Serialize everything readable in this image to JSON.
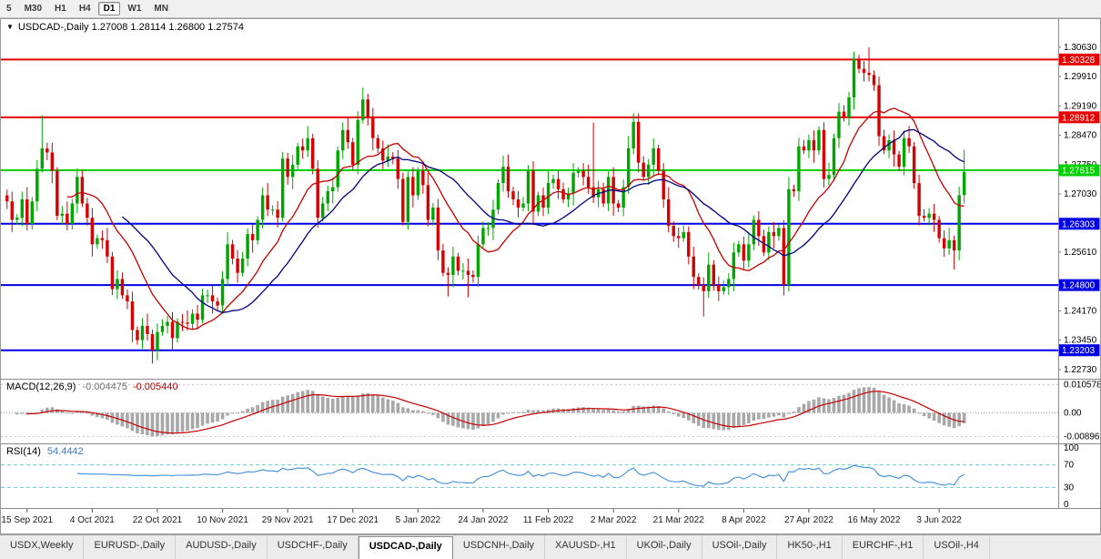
{
  "toolbar": {
    "buttons": [
      "5",
      "M30",
      "H1",
      "H4",
      "D1",
      "W1",
      "MN"
    ],
    "active": "D1"
  },
  "chart": {
    "collapse_icon": "▼",
    "readout": "USDCAD-,Daily 1.27008 1.28114 1.26800 1.27574",
    "symbol": "USDCAD-",
    "period": "Daily",
    "open": "1.27008",
    "high": "1.28114",
    "low": "1.26800",
    "close": "1.27574"
  },
  "main_axis": {
    "labels": [
      "1.30630",
      "1.29910",
      "1.29190",
      "1.28470",
      "1.27750",
      "1.27030",
      "1.25610",
      "1.24170",
      "1.23450",
      "1.22730"
    ],
    "price_max": 1.3105,
    "price_min": 1.2255
  },
  "lines": [
    {
      "price": 1.30328,
      "label": "1.30328",
      "color": "#E60000",
      "text": "#FFFFFF"
    },
    {
      "price": 1.28912,
      "label": "1.28912",
      "color": "#E60000",
      "text": "#FFFFFF"
    },
    {
      "price": 1.27615,
      "label": "1.27615",
      "color": "#00D000",
      "text": "#FFFFFF"
    },
    {
      "price": 1.26303,
      "label": "1.26303",
      "color": "#0000E6",
      "text": "#FFFFFF"
    },
    {
      "price": 1.248,
      "label": "1.24800",
      "color": "#0000E6",
      "text": "#FFFFFF"
    },
    {
      "price": 1.23203,
      "label": "1.23203",
      "color": "#0000E6",
      "text": "#FFFFFF"
    }
  ],
  "chart_data": {
    "type": "candlestick",
    "symbol": "USDCAD",
    "timeframe": "Daily",
    "first_open": 1.27,
    "closes": [
      1.2685,
      1.264,
      1.2645,
      1.269,
      1.263,
      1.2685,
      1.2765,
      1.2815,
      1.2805,
      1.276,
      1.265,
      1.2655,
      1.263,
      1.268,
      1.2745,
      1.268,
      1.2645,
      1.258,
      1.2595,
      1.259,
      1.255,
      1.247,
      1.2495,
      1.2455,
      1.244,
      1.237,
      1.2345,
      1.238,
      1.236,
      1.232,
      1.2365,
      1.238,
      1.239,
      1.235,
      1.239,
      1.2388,
      1.2385,
      1.241,
      1.2395,
      1.2455,
      1.2455,
      1.244,
      1.243,
      1.2495,
      1.258,
      1.2545,
      1.251,
      1.2545,
      1.2605,
      1.259,
      1.264,
      1.27,
      1.2665,
      1.2665,
      1.2645,
      1.279,
      1.2745,
      1.2775,
      1.282,
      1.281,
      1.284,
      1.2765,
      1.2645,
      1.268,
      1.271,
      1.272,
      1.281,
      1.286,
      1.283,
      1.2775,
      1.2885,
      1.2935,
      1.289,
      1.284,
      1.2815,
      1.2785,
      1.2795,
      1.279,
      1.274,
      1.2635,
      1.2745,
      1.27,
      1.276,
      1.2725,
      1.264,
      1.267,
      1.2565,
      1.251,
      1.2505,
      1.255,
      1.2515,
      1.2515,
      1.2505,
      1.25,
      1.258,
      1.262,
      1.262,
      1.2665,
      1.273,
      1.277,
      1.271,
      1.269,
      1.267,
      1.268,
      1.276,
      1.266,
      1.27,
      1.267,
      1.273,
      1.274,
      1.2715,
      1.269,
      1.2705,
      1.2755,
      1.276,
      1.2745,
      1.272,
      1.2695,
      1.2715,
      1.268,
      1.2745,
      1.268,
      1.267,
      1.272,
      1.2815,
      1.288,
      1.278,
      1.2745,
      1.2775,
      1.2815,
      1.276,
      1.269,
      1.2625,
      1.26,
      1.2595,
      1.261,
      1.255,
      1.25,
      1.248,
      1.2465,
      1.253,
      1.248,
      1.2465,
      1.2475,
      1.2495,
      1.256,
      1.258,
      1.254,
      1.258,
      1.264,
      1.26,
      1.256,
      1.261,
      1.26,
      1.262,
      1.248,
      1.2715,
      1.271,
      1.282,
      1.281,
      1.2835,
      1.281,
      1.286,
      1.274,
      1.275,
      1.284,
      1.2905,
      1.289,
      1.294,
      1.3035,
      1.301,
      1.3,
      1.2995,
      1.297,
      1.2845,
      1.281,
      1.2835,
      1.28,
      1.277,
      1.284,
      1.282,
      1.273,
      1.265,
      1.2645,
      1.2655,
      1.264,
      1.2595,
      1.257,
      1.259,
      1.2565,
      1.27,
      1.27574
    ],
    "wick_units": [
      14,
      24,
      9,
      19,
      30,
      11,
      21,
      16
    ],
    "wick_scale": 0.0001,
    "spikes": {
      "7": {
        "h": 1.2896
      },
      "29": {
        "l": 1.2288
      },
      "71": {
        "h": 1.2964
      },
      "88": {
        "l": 1.2452
      },
      "92": {
        "l": 1.245
      },
      "99": {
        "h": 1.2797
      },
      "117": {
        "h": 1.2878
      },
      "125": {
        "h": 1.2901
      },
      "139": {
        "l": 1.2403
      },
      "155": {
        "l": 1.2455
      },
      "169": {
        "h": 1.3052
      },
      "172": {
        "h": 1.3063
      },
      "189": {
        "l": 1.2518
      },
      "191": {
        "o": 1.27008,
        "h": 1.28114,
        "l": 1.268,
        "c": 1.27574
      }
    },
    "up_color": "#00A600",
    "down_color": "#D50000",
    "moving_averages": [
      {
        "period": 13,
        "color": "#C80000"
      },
      {
        "period": 24,
        "color": "#000080"
      }
    ],
    "dates": {
      "labels": [
        "15 Sep 2021",
        "4 Oct 2021",
        "22 Oct 2021",
        "10 Nov 2021",
        "29 Nov 2021",
        "17 Dec 2021",
        "5 Jan 2022",
        "24 Jan 2022",
        "11 Feb 2022",
        "2 Mar 2022",
        "21 Mar 2022",
        "8 Apr 2022",
        "27 Apr 2022",
        "16 May 2022",
        "3 Jun 2022"
      ],
      "start_index": 4,
      "step": 13
    }
  },
  "macd_panel": {
    "name": "MACD(12,26,9)",
    "value_main": "-0.004475",
    "value_signal": "-0.005440",
    "axis": [
      "0.010578",
      "0.00",
      "-0.00896"
    ],
    "range": {
      "max": 0.0115,
      "min": -0.0105
    },
    "params": {
      "fast": 12,
      "slow": 26,
      "signal": 9
    },
    "histogram_color": "#A8A8A8",
    "signal_color": "#C80000"
  },
  "rsi_panel": {
    "name": "RSI(14)",
    "value": "54.4442",
    "period": 14,
    "axis": [
      "100",
      "70",
      "30",
      "0"
    ],
    "levels": [
      70,
      30
    ],
    "level_color": "#6FC7C7",
    "line_color": "#3C8CDC"
  },
  "tabs": [
    {
      "label": "USDX,Weekly"
    },
    {
      "label": "EURUSD-,Daily"
    },
    {
      "label": "AUDUSD-,Daily"
    },
    {
      "label": "USDCHF-,Daily"
    },
    {
      "label": "USDCAD-,Daily"
    },
    {
      "label": "USDCNH-,Daily"
    },
    {
      "label": "XAUUSD-,H1"
    },
    {
      "label": "UKOil-,Daily"
    },
    {
      "label": "USOil-,Daily"
    },
    {
      "label": "HK50-,H1"
    },
    {
      "label": "EURCHF-,H1"
    },
    {
      "label": "USOil-,H4"
    }
  ],
  "active_tab": "USDCAD-,Daily"
}
